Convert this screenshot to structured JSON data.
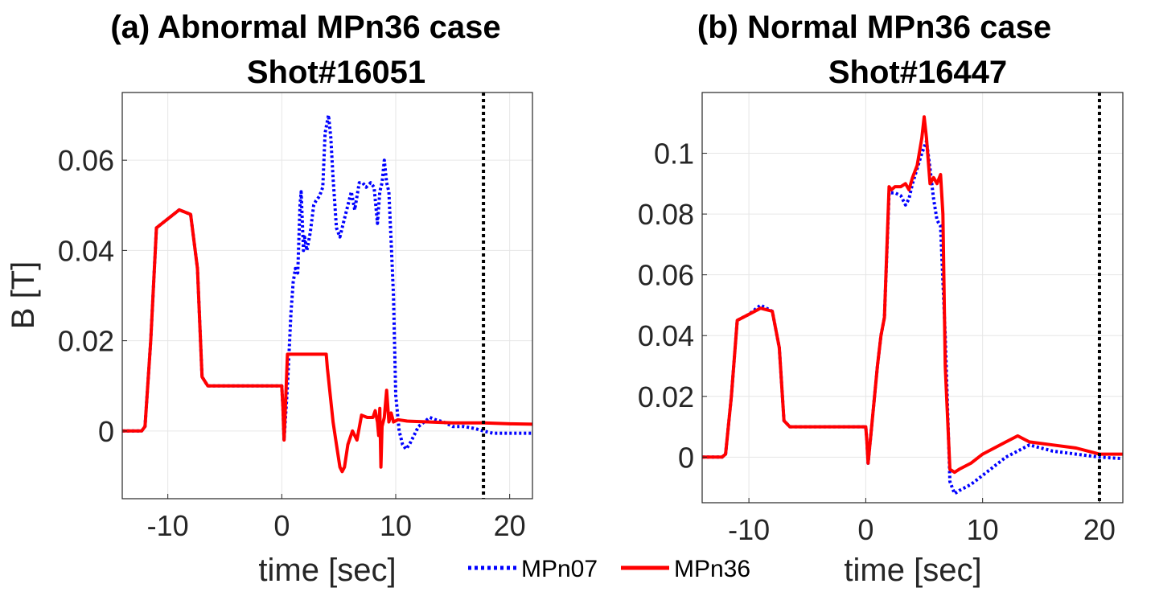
{
  "colors": {
    "mpn07": "#0000ff",
    "mpn36": "#ff0000",
    "marker": "#000000",
    "grid": "#e6e6e6",
    "axis": "#262626"
  },
  "legend": {
    "entries": [
      {
        "label": "MPn07",
        "style": "dotted",
        "color": "#0000ff"
      },
      {
        "label": "MPn36",
        "style": "solid",
        "color": "#ff0000"
      }
    ]
  },
  "chart_data": [
    {
      "type": "line",
      "title_line1": "(a) Abnormal MPn36 case",
      "title_line2": "Shot#16051",
      "xlabel": "time [sec]",
      "ylabel": "B [T]",
      "xlim": [
        -14,
        22
      ],
      "ylim": [
        -0.015,
        0.075
      ],
      "xticks": [
        -10,
        0,
        10,
        20
      ],
      "xtick_labels": [
        "-10",
        "0",
        "10",
        "20"
      ],
      "yticks": [
        0,
        0.02,
        0.04,
        0.06
      ],
      "ytick_labels": [
        "0",
        "0.02",
        "0.04",
        "0.06"
      ],
      "grid": true,
      "marker_line_x": 17.7,
      "series": [
        {
          "name": "MPn07",
          "style": "dotted",
          "x": [
            -14,
            -12.3,
            -12,
            -11.5,
            -11,
            -10,
            -9,
            -8,
            -7.4,
            -7,
            -6.5,
            0,
            0.1,
            0.2,
            0.5,
            0.8,
            1.0,
            1.2,
            1.4,
            1.6,
            1.7,
            1.9,
            2.0,
            2.2,
            2.5,
            2.8,
            3.0,
            3.3,
            3.6,
            3.8,
            4.1,
            4.3,
            4.5,
            4.8,
            5.1,
            5.4,
            5.8,
            6.1,
            6.4,
            6.8,
            7.1,
            7.4,
            7.8,
            8.1,
            8.4,
            8.6,
            8.8,
            9.0,
            9.2,
            9.4,
            9.6,
            9.8,
            10.0,
            10.3,
            10.6,
            10.9,
            11.2,
            11.6,
            12.0,
            12.5,
            13.0,
            13.5,
            14.2,
            15.0,
            16.0,
            17.0,
            17.7,
            18.5,
            19.5,
            20.5,
            22
          ],
          "y": [
            0,
            0,
            0.001,
            0.02,
            0.045,
            0.047,
            0.049,
            0.048,
            0.036,
            0.012,
            0.01,
            0.01,
            0.005,
            -0.002,
            0.01,
            0.026,
            0.033,
            0.036,
            0.035,
            0.05,
            0.053,
            0.04,
            0.043,
            0.04,
            0.044,
            0.05,
            0.051,
            0.052,
            0.054,
            0.066,
            0.07,
            0.065,
            0.056,
            0.045,
            0.043,
            0.046,
            0.05,
            0.053,
            0.049,
            0.055,
            0.055,
            0.054,
            0.055,
            0.054,
            0.046,
            0.053,
            0.055,
            0.06,
            0.055,
            0.053,
            0.042,
            0.03,
            0.008,
            0.0,
            -0.003,
            -0.004,
            -0.003,
            -0.001,
            0.001,
            0.002,
            0.003,
            0.0025,
            0.002,
            0.001,
            0.001,
            0.0005,
            0.0,
            -0.0005,
            -0.0005,
            -0.0005,
            -0.0005
          ]
        },
        {
          "name": "MPn36",
          "style": "solid",
          "x": [
            -14,
            -12.3,
            -12,
            -11.5,
            -11,
            -10,
            -9,
            -8,
            -7.4,
            -7,
            -6.5,
            0,
            0.1,
            0.2,
            0.5,
            3.9,
            4.0,
            4.5,
            4.8,
            5.1,
            5.3,
            5.5,
            5.8,
            6.2,
            6.6,
            7.0,
            7.5,
            8.0,
            8.2,
            8.4,
            8.5,
            8.6,
            8.7,
            8.8,
            9.0,
            9.2,
            9.4,
            9.6,
            9.8,
            10.2,
            11,
            13,
            15,
            17.7,
            20,
            22
          ],
          "y": [
            0,
            0,
            0.001,
            0.02,
            0.045,
            0.047,
            0.049,
            0.048,
            0.036,
            0.012,
            0.01,
            0.01,
            0.005,
            -0.002,
            0.017,
            0.017,
            0.014,
            0.002,
            -0.003,
            -0.008,
            -0.009,
            -0.008,
            -0.003,
            0.0,
            -0.002,
            0.0035,
            0.003,
            0.003,
            0.0045,
            0.002,
            -0.001,
            0.005,
            -0.008,
            0.001,
            0.003,
            0.009,
            0.002,
            0.004,
            0.002,
            0.0025,
            0.0022,
            0.002,
            0.0018,
            0.0018,
            0.0016,
            0.0015
          ]
        }
      ]
    },
    {
      "type": "line",
      "title_line1": "(b) Normal MPn36 case",
      "title_line2": "Shot#16447",
      "xlabel": "time [sec]",
      "ylabel": "",
      "xlim": [
        -14,
        22
      ],
      "ylim": [
        -0.015,
        0.12
      ],
      "xticks": [
        -10,
        0,
        10,
        20
      ],
      "xtick_labels": [
        "-10",
        "0",
        "10",
        "20"
      ],
      "yticks": [
        0,
        0.02,
        0.04,
        0.06,
        0.08,
        0.1
      ],
      "ytick_labels": [
        "0",
        "0.02",
        "0.04",
        "0.06",
        "0.08",
        "0.1"
      ],
      "grid": true,
      "marker_line_x": 20,
      "series": [
        {
          "name": "MPn07",
          "style": "dotted",
          "x": [
            -14,
            -12.3,
            -12,
            -11.5,
            -11,
            -10,
            -9,
            -8,
            -7.4,
            -7,
            -6.5,
            0,
            0.1,
            0.2,
            0.5,
            1.0,
            1.3,
            1.6,
            2.0,
            2.2,
            2.5,
            3.0,
            3.4,
            3.7,
            4.0,
            4.4,
            4.8,
            5.2,
            5.5,
            5.8,
            6.1,
            6.4,
            6.8,
            7.2,
            7.6,
            8,
            9,
            10,
            11,
            12,
            13,
            14,
            16,
            18,
            20,
            22
          ],
          "y": [
            0,
            0,
            0.001,
            0.02,
            0.045,
            0.047,
            0.05,
            0.048,
            0.036,
            0.012,
            0.01,
            0.01,
            0.005,
            -0.002,
            0.01,
            0.03,
            0.04,
            0.046,
            0.087,
            0.087,
            0.087,
            0.086,
            0.083,
            0.085,
            0.09,
            0.095,
            0.1,
            0.104,
            0.095,
            0.085,
            0.078,
            0.076,
            0.04,
            -0.008,
            -0.012,
            -0.011,
            -0.009,
            -0.006,
            -0.003,
            0.0,
            0.002,
            0.004,
            0.002,
            0.001,
            0.0,
            -0.0005
          ]
        },
        {
          "name": "MPn36",
          "style": "solid",
          "x": [
            -14,
            -12.3,
            -12,
            -11.5,
            -11,
            -10,
            -9,
            -8,
            -7.4,
            -7,
            -6.5,
            0,
            0.1,
            0.2,
            0.5,
            1.0,
            1.3,
            1.6,
            2.0,
            2.2,
            2.5,
            3.0,
            3.4,
            3.7,
            4.0,
            4.4,
            4.8,
            5.0,
            5.2,
            5.5,
            5.8,
            6.1,
            6.4,
            6.6,
            6.8,
            7.2,
            7.6,
            8,
            9,
            10,
            11,
            12,
            13,
            14,
            16,
            18,
            20,
            22
          ],
          "y": [
            0,
            0,
            0.001,
            0.02,
            0.045,
            0.047,
            0.049,
            0.048,
            0.036,
            0.012,
            0.01,
            0.01,
            0.005,
            -0.002,
            0.01,
            0.03,
            0.04,
            0.046,
            0.089,
            0.088,
            0.089,
            0.089,
            0.09,
            0.088,
            0.092,
            0.096,
            0.105,
            0.112,
            0.105,
            0.09,
            0.092,
            0.09,
            0.093,
            0.08,
            0.03,
            -0.004,
            -0.005,
            -0.004,
            -0.002,
            0.001,
            0.003,
            0.005,
            0.007,
            0.005,
            0.004,
            0.003,
            0.001,
            0.001
          ]
        }
      ]
    }
  ]
}
